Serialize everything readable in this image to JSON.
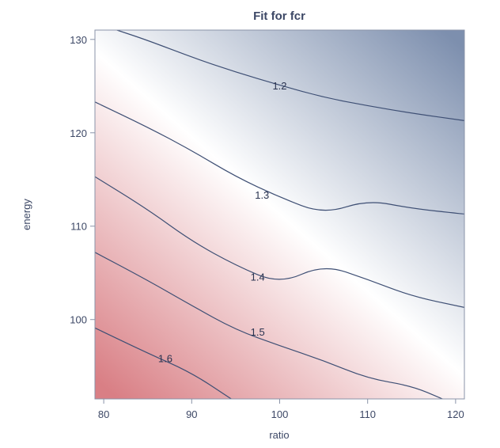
{
  "chart_data": {
    "type": "contour",
    "title": "Fit for fcr",
    "xlabel": "ratio",
    "ylabel": "energy",
    "xlim": [
      79,
      121
    ],
    "ylim": [
      91.5,
      131
    ],
    "xticks": [
      80,
      90,
      100,
      110,
      120
    ],
    "yticks": [
      100,
      110,
      120,
      130
    ],
    "colors": {
      "high": "#7d8fae",
      "mid": "#ffffff",
      "low": "#d97f85",
      "line": "#3e4f74",
      "axis": "#8a93a8"
    },
    "color_range": [
      1.15,
      1.65
    ],
    "contours": [
      {
        "level": 1.2,
        "label": "1.2",
        "label_at": [
          100,
          125
        ],
        "points": [
          [
            81.5,
            131
          ],
          [
            85,
            129.9
          ],
          [
            90,
            128.1
          ],
          [
            95,
            126.5
          ],
          [
            100,
            125.1
          ],
          [
            105,
            123.8
          ],
          [
            110,
            122.9
          ],
          [
            115,
            122.1
          ],
          [
            121,
            121.3
          ]
        ]
      },
      {
        "level": 1.3,
        "label": "1.3",
        "label_at": [
          98,
          113.3
        ],
        "points": [
          [
            79,
            123.3
          ],
          [
            85,
            120.6
          ],
          [
            90,
            118.1
          ],
          [
            95,
            115.3
          ],
          [
            100,
            113.1
          ],
          [
            105,
            111.3
          ],
          [
            110,
            112.8
          ],
          [
            115,
            111.9
          ],
          [
            121,
            111.3
          ]
        ]
      },
      {
        "level": 1.4,
        "label": "1.4",
        "label_at": [
          97.5,
          104.5
        ],
        "points": [
          [
            79,
            115.3
          ],
          [
            85,
            111.8
          ],
          [
            90,
            108.4
          ],
          [
            95,
            105.8
          ],
          [
            100,
            103.8
          ],
          [
            105,
            105.9
          ],
          [
            110,
            104.3
          ],
          [
            115,
            102.5
          ],
          [
            121,
            101.3
          ]
        ]
      },
      {
        "level": 1.5,
        "label": "1.5",
        "label_at": [
          97.5,
          98.6
        ],
        "points": [
          [
            79,
            107.2
          ],
          [
            85,
            104.2
          ],
          [
            90,
            101.5
          ],
          [
            95,
            98.9
          ],
          [
            100,
            97.2
          ],
          [
            105,
            95.6
          ],
          [
            110,
            93.7
          ],
          [
            115,
            92.9
          ],
          [
            118.5,
            91.5
          ]
        ]
      },
      {
        "level": 1.6,
        "label": "1.6",
        "label_at": [
          87,
          95.8
        ],
        "points": [
          [
            79,
            99.1
          ],
          [
            85,
            96.4
          ],
          [
            90,
            94.3
          ],
          [
            94.5,
            91.5
          ]
        ]
      }
    ]
  }
}
